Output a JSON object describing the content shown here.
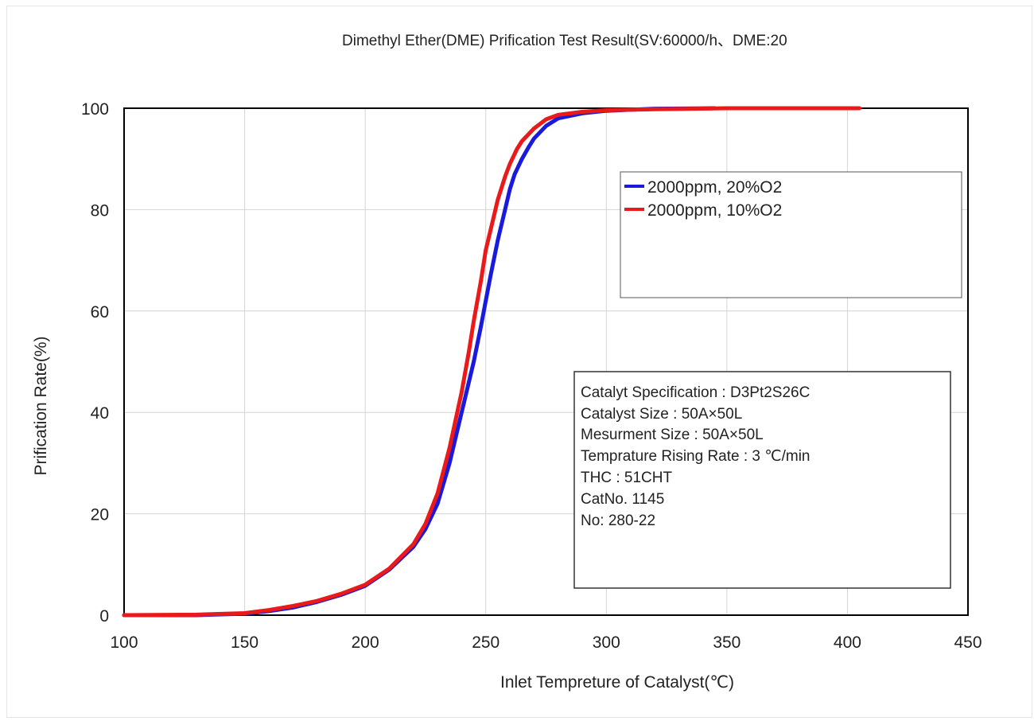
{
  "chart_data": {
    "type": "line",
    "title": "Dimethyl Ether(DME) Prification Test Result(SV:60000/h、DME:20",
    "xlabel": "Inlet Tempreture of Catalyst(℃)",
    "ylabel": "Prification Rate(%)",
    "xlim": [
      100,
      450
    ],
    "ylim": [
      0,
      100
    ],
    "xticks": [
      100,
      150,
      200,
      250,
      300,
      350,
      400,
      450
    ],
    "yticks": [
      0,
      20,
      40,
      60,
      80,
      100
    ],
    "xtick_labels": [
      "100",
      "150",
      "200",
      "250",
      "300",
      "350",
      "400",
      "450"
    ],
    "ytick_labels": [
      "0",
      "20",
      "40",
      "60",
      "80",
      "100"
    ],
    "grid": true,
    "legend_position": "top-right",
    "series": [
      {
        "name": "2000ppm, 20%O2",
        "color": "#1a1adc",
        "x": [
          100,
          130,
          150,
          160,
          170,
          180,
          190,
          200,
          210,
          220,
          225,
          230,
          235,
          240,
          245,
          248,
          250,
          252,
          255,
          258,
          260,
          262,
          265,
          268,
          270,
          275,
          280,
          290,
          300,
          310,
          320,
          345
        ],
        "y": [
          0,
          0,
          0.3,
          0.8,
          1.5,
          2.6,
          4,
          5.8,
          9,
          13.5,
          17,
          22,
          30,
          40,
          50,
          57,
          62,
          67,
          74,
          80,
          84,
          87,
          90,
          92.5,
          94,
          96.5,
          98,
          99,
          99.5,
          99.7,
          99.9,
          100
        ]
      },
      {
        "name": "2000ppm, 10%O2",
        "color": "#e81a1a",
        "x": [
          100,
          130,
          150,
          160,
          170,
          180,
          190,
          200,
          210,
          220,
          225,
          230,
          235,
          240,
          243,
          245,
          248,
          250,
          252,
          255,
          258,
          260,
          263,
          265,
          270,
          275,
          280,
          290,
          300,
          320,
          350,
          405
        ],
        "y": [
          0,
          0.1,
          0.4,
          1,
          1.8,
          2.8,
          4.2,
          6,
          9.2,
          14,
          18,
          24,
          33,
          44,
          52,
          58,
          66,
          72,
          76,
          82,
          86.5,
          89,
          92,
          93.5,
          96,
          97.8,
          98.7,
          99.3,
          99.6,
          99.8,
          100,
          100
        ]
      }
    ],
    "annotation_lines": [
      "Catalyt Specification : D3Pt2S26C",
      "Catalyst Size : 50A×50L",
      "Mesurment Size : 50A×50L",
      "Temprature Rising Rate :  3 ℃/min",
      "THC :  51CHT",
      "CatNo. 1145",
      "No: 280-22"
    ]
  }
}
